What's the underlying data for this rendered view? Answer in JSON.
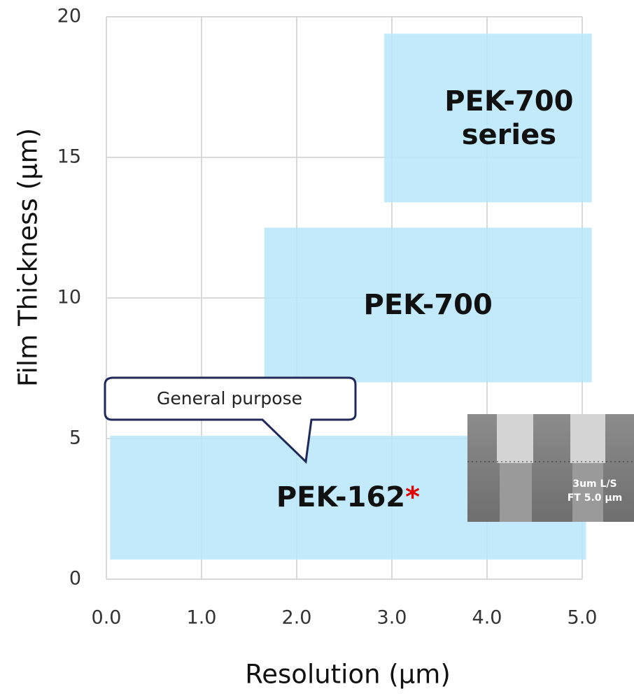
{
  "chart_data": {
    "type": "range-box",
    "x_label": "Resolution (μm)",
    "y_label": "Film Thickness (μm)",
    "xlim": [
      0,
      5
    ],
    "ylim": [
      0,
      20
    ],
    "xticks": [
      {
        "value": 0,
        "label": "0.0"
      },
      {
        "value": 1,
        "label": "1.0"
      },
      {
        "value": 2,
        "label": "2.0"
      },
      {
        "value": 3,
        "label": "3.0"
      },
      {
        "value": 4,
        "label": "4.0"
      },
      {
        "value": 5,
        "label": "5.0"
      }
    ],
    "yticks": [
      0,
      5,
      10,
      15,
      20
    ],
    "grid": true,
    "color": "#b7e6f9",
    "series": [
      {
        "name": "PEK-162",
        "marker": "*",
        "x": [
          0.04,
          5.04
        ],
        "y": [
          0.7,
          5.1
        ]
      },
      {
        "name": "PEK-700",
        "x": [
          1.66,
          5.1
        ],
        "y": [
          7.0,
          12.5
        ]
      },
      {
        "name": "PEK-700 series",
        "x": [
          2.92,
          5.1
        ],
        "y": [
          13.4,
          19.4
        ]
      }
    ],
    "annotation": "General purpose",
    "inset_caption": [
      "3um L/S",
      "FT 5.0 μm"
    ]
  }
}
